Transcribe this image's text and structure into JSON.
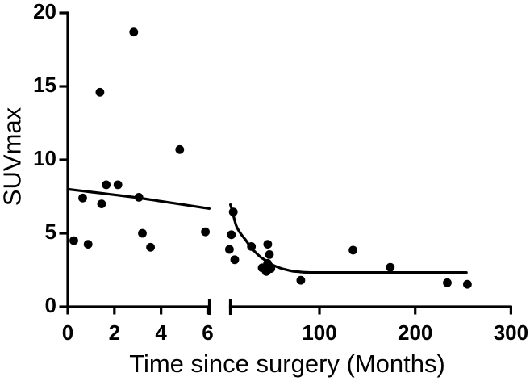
{
  "figure": {
    "background_color": "#ffffff",
    "ink_color": "#000000",
    "description": "Scatter plot of SUVmax versus time since surgery with a broken x-axis and fitted one-phase decay curves"
  },
  "chart_data": {
    "type": "scatter",
    "title": "",
    "xlabel": "Time since surgery (Months)",
    "ylabel": "SUVmax",
    "ylim": [
      0,
      20
    ],
    "yticks": [
      "0",
      "5",
      "10",
      "15",
      "20"
    ],
    "grid": false,
    "legend_position": "none",
    "axis_break": true,
    "marker": {
      "shape": "filled-circle",
      "color": "#000000"
    },
    "panels": [
      {
        "name": "early-months",
        "xlim": [
          0,
          6.07
        ],
        "xticks": [
          "0",
          "2",
          "4",
          "6"
        ],
        "points": [
          [
            0.26,
            4.5
          ],
          [
            0.64,
            7.4
          ],
          [
            0.87,
            4.25
          ],
          [
            1.38,
            14.6
          ],
          [
            1.45,
            7.0
          ],
          [
            1.65,
            8.3
          ],
          [
            2.15,
            8.3
          ],
          [
            2.83,
            18.7
          ],
          [
            3.05,
            7.45
          ],
          [
            3.2,
            5.0
          ],
          [
            3.55,
            4.05
          ],
          [
            4.8,
            10.7
          ],
          [
            5.9,
            5.1
          ]
        ],
        "fit_curve": [
          [
            0,
            8.0
          ],
          [
            1,
            7.81
          ],
          [
            2,
            7.62
          ],
          [
            3,
            7.42
          ],
          [
            4,
            7.18
          ],
          [
            5,
            6.94
          ],
          [
            6.07,
            6.68
          ]
        ]
      },
      {
        "name": "late-months",
        "xlim": [
          6.9,
          301
        ],
        "xticks": [
          "100",
          "200",
          "300"
        ],
        "points": [
          [
            10,
            6.45
          ],
          [
            8,
            4.9
          ],
          [
            6,
            3.9
          ],
          [
            11.5,
            3.2
          ],
          [
            29,
            4.1
          ],
          [
            46,
            4.25
          ],
          [
            47.8,
            3.55
          ],
          [
            45.8,
            2.95
          ],
          [
            40.2,
            2.65
          ],
          [
            44.5,
            2.4
          ],
          [
            49.2,
            2.6
          ],
          [
            80.5,
            1.8
          ],
          [
            135,
            3.85
          ],
          [
            174,
            2.68
          ],
          [
            233.5,
            1.63
          ],
          [
            254.5,
            1.53
          ]
        ],
        "fit_curve": [
          [
            7,
            6.95
          ],
          [
            9,
            6.5
          ],
          [
            13.2,
            5.49
          ],
          [
            18,
            4.95
          ],
          [
            23.3,
            4.51
          ],
          [
            28,
            4.08
          ],
          [
            33.5,
            3.68
          ],
          [
            38.5,
            3.38
          ],
          [
            44.4,
            3.13
          ],
          [
            51,
            2.85
          ],
          [
            58.7,
            2.64
          ],
          [
            65,
            2.52
          ],
          [
            72.2,
            2.42
          ],
          [
            80,
            2.37
          ],
          [
            86.5,
            2.34
          ],
          [
            110,
            2.33
          ],
          [
            150,
            2.33
          ],
          [
            200,
            2.33
          ],
          [
            253.5,
            2.33
          ]
        ]
      }
    ]
  }
}
